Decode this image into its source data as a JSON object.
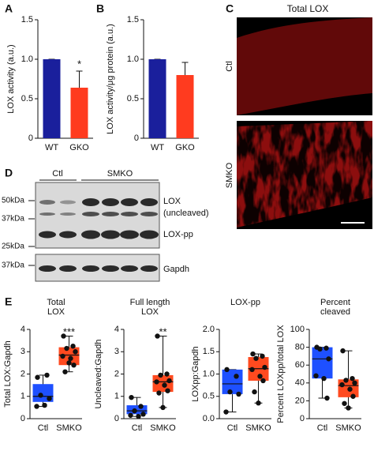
{
  "panel_labels": [
    "A",
    "B",
    "C",
    "D",
    "E"
  ],
  "panel_c": {
    "title": "Total LOX",
    "rows": [
      "Ctl",
      "SMKO"
    ]
  },
  "panel_d": {
    "groups": [
      "Ctl",
      "SMKO"
    ],
    "markers": [
      "50kDa",
      "37kDa",
      "25kDa",
      "37kDa"
    ],
    "bands": [
      "LOX",
      "(uncleaved)",
      "LOX-pp",
      "Gapdh"
    ]
  },
  "chart_data": [
    {
      "type": "bar",
      "ylabel": "LOX activity (a.u.)",
      "categories": [
        "WT",
        "GKO"
      ],
      "values": [
        1.0,
        0.64
      ],
      "errors": [
        0,
        0.21
      ],
      "colors": [
        "#1a1f9c",
        "#ff3b1f"
      ],
      "value_annotations": [
        null,
        "*"
      ],
      "ylim": [
        0,
        1.5
      ],
      "yticks": [
        0,
        0.5,
        {
          "value": 1,
          "label": "1.0"
        },
        1.5
      ]
    },
    {
      "type": "bar",
      "ylabel": "LOX activity/μg protein (a.u.)",
      "categories": [
        "WT",
        "GKO"
      ],
      "values": [
        1.0,
        0.8
      ],
      "errors": [
        0,
        0.16
      ],
      "colors": [
        "#1a1f9c",
        "#ff3b1f"
      ],
      "value_annotations": [
        null,
        null
      ],
      "ylim": [
        0,
        1.5
      ],
      "yticks": [
        0,
        0.5,
        {
          "value": 1,
          "label": "1.0"
        },
        1.5
      ]
    },
    {
      "type": "box",
      "title": [
        "Total",
        "LOX"
      ],
      "ylabel": "Total LOX:Gapdh",
      "categories": [
        "Ctl",
        "SMKO"
      ],
      "annotation": "***",
      "ylim": [
        0,
        4
      ],
      "yticks": [
        0,
        1,
        2,
        3,
        4
      ],
      "boxes": [
        {
          "color": "#1e50ff",
          "min": 0.55,
          "q1": 0.75,
          "median": 1.0,
          "q3": 1.55,
          "max": 1.95,
          "points": [
            1.85,
            1.95,
            1.05,
            0.9,
            0.55,
            0.6
          ]
        },
        {
          "color": "#ff4a1f",
          "min": 2.1,
          "q1": 2.4,
          "median": 2.85,
          "q3": 3.2,
          "max": 3.7,
          "points": [
            3.7,
            3.25,
            3.15,
            3.0,
            2.8,
            2.7,
            2.4,
            2.1,
            2.5
          ]
        }
      ]
    },
    {
      "type": "box",
      "title": [
        "Full length",
        "LOX"
      ],
      "ylabel": "Uncleaved:Gapdh",
      "categories": [
        "Ctl",
        "SMKO"
      ],
      "annotation": "**",
      "ylim": [
        0,
        4
      ],
      "yticks": [
        0,
        1,
        2,
        3,
        4
      ],
      "boxes": [
        {
          "color": "#1e50ff",
          "min": 0.1,
          "q1": 0.2,
          "median": 0.35,
          "q3": 0.6,
          "max": 0.95,
          "points": [
            0.95,
            0.55,
            0.35,
            0.2,
            0.15,
            0.1
          ]
        },
        {
          "color": "#ff4a1f",
          "min": 0.5,
          "q1": 1.2,
          "median": 1.65,
          "q3": 1.95,
          "max": 3.7,
          "points": [
            3.7,
            2.0,
            1.95,
            1.7,
            1.65,
            1.5,
            1.25,
            1.15,
            0.5
          ]
        }
      ]
    },
    {
      "type": "box",
      "title": [
        "LOX-pp"
      ],
      "ylabel": "LOXpp:Gapdh",
      "categories": [
        "Ctl",
        "SMKO"
      ],
      "annotation": null,
      "ylim": [
        0,
        2
      ],
      "yticks": [
        {
          "value": 0,
          "label": "0.0"
        },
        0.5,
        {
          "value": 1,
          "label": "1.0"
        },
        1.5,
        {
          "value": 2,
          "label": "2.0"
        }
      ],
      "boxes": [
        {
          "color": "#1e50ff",
          "min": 0.15,
          "q1": 0.55,
          "median": 0.78,
          "q3": 1.1,
          "max": 1.1,
          "points": [
            1.1,
            0.95,
            0.6,
            0.55,
            0.15
          ]
        },
        {
          "color": "#ff4a1f",
          "min": 0.35,
          "q1": 0.85,
          "median": 1.12,
          "q3": 1.38,
          "max": 1.45,
          "points": [
            1.45,
            1.4,
            1.35,
            1.15,
            1.1,
            0.95,
            0.85,
            0.6,
            0.35
          ]
        }
      ]
    },
    {
      "type": "box",
      "title": [
        "Percent",
        "cleaved"
      ],
      "ylabel": "Percent LOXpp/total LOX",
      "categories": [
        "Ctl",
        "SMKO"
      ],
      "annotation": null,
      "ylim": [
        0,
        100
      ],
      "yticks": [
        0,
        20,
        40,
        60,
        80,
        100
      ],
      "boxes": [
        {
          "color": "#1e50ff",
          "min": 23,
          "q1": 45,
          "median": 67,
          "q3": 80,
          "max": 80,
          "points": [
            80,
            79,
            78,
            67,
            48,
            45,
            23
          ]
        },
        {
          "color": "#ff4a1f",
          "min": 12,
          "q1": 24,
          "median": 37,
          "q3": 44,
          "max": 76,
          "points": [
            76,
            45,
            43,
            40,
            38,
            33,
            25,
            17,
            12
          ]
        }
      ]
    }
  ]
}
